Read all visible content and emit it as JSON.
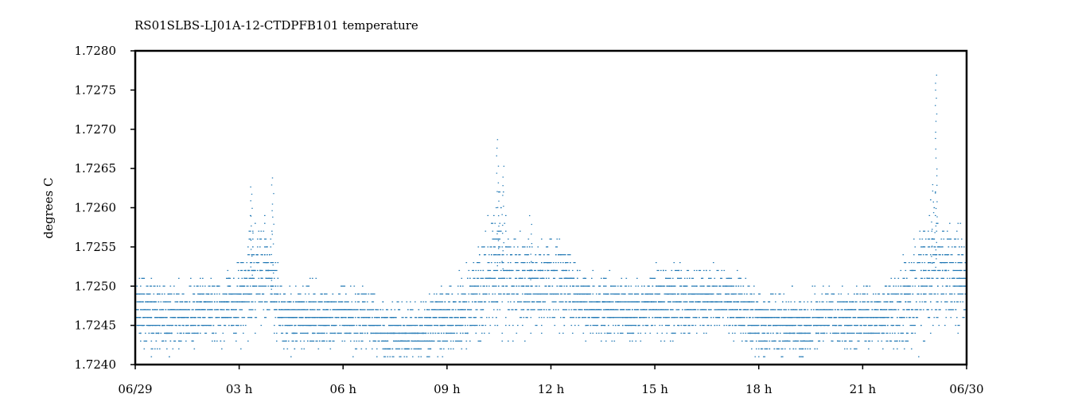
{
  "chart_data": {
    "type": "scatter",
    "title": "RS01SLBS-LJ01A-12-CTDPFB101 temperature",
    "xlabel": "",
    "ylabel": "degrees C",
    "xlim": [
      0,
      24
    ],
    "ylim": [
      1.724,
      1.728
    ],
    "grid": false,
    "legend": "none",
    "x_unit": "hours since 06/29 00:00",
    "x_ticks": [
      {
        "value": 0,
        "label": "06/29"
      },
      {
        "value": 3,
        "label": "03 h"
      },
      {
        "value": 6,
        "label": "06 h"
      },
      {
        "value": 9,
        "label": "09 h"
      },
      {
        "value": 12,
        "label": "12 h"
      },
      {
        "value": 15,
        "label": "15 h"
      },
      {
        "value": 18,
        "label": "18 h"
      },
      {
        "value": 21,
        "label": "21 h"
      },
      {
        "value": 24,
        "label": "06/30"
      }
    ],
    "y_ticks": [
      {
        "value": 1.724,
        "label": "1.7240"
      },
      {
        "value": 1.7245,
        "label": "1.7245"
      },
      {
        "value": 1.725,
        "label": "1.7250"
      },
      {
        "value": 1.7255,
        "label": "1.7255"
      },
      {
        "value": 1.726,
        "label": "1.7260"
      },
      {
        "value": 1.7265,
        "label": "1.7265"
      },
      {
        "value": 1.727,
        "label": "1.7270"
      },
      {
        "value": 1.7275,
        "label": "1.7275"
      },
      {
        "value": 1.728,
        "label": "1.7280"
      }
    ],
    "color": "#1f77b4",
    "series": [
      {
        "x": [
          0.0,
          0.5,
          1.0,
          1.5,
          2.0,
          2.5,
          3.0,
          3.25,
          3.5,
          3.75,
          4.0,
          4.25,
          4.5,
          5.0,
          5.5,
          6.0,
          6.5,
          7.0,
          7.5,
          8.0,
          8.5,
          9.0,
          9.5,
          10.0,
          10.25,
          10.5,
          10.75,
          11.0,
          11.5,
          12.0,
          12.5,
          13.0,
          13.5,
          14.0,
          14.5,
          15.0,
          15.5,
          16.0,
          16.5,
          17.0,
          17.5,
          18.0,
          18.5,
          19.0,
          19.5,
          20.0,
          20.5,
          21.0,
          21.5,
          22.0,
          22.5,
          22.75,
          23.0,
          23.25,
          23.5,
          24.0
        ],
        "y": [
          1.7247,
          1.7246,
          1.7246,
          1.7246,
          1.7247,
          1.7247,
          1.7248,
          1.7251,
          1.7252,
          1.7252,
          1.7249,
          1.7246,
          1.7246,
          1.7246,
          1.7246,
          1.7246,
          1.7246,
          1.7245,
          1.7244,
          1.7244,
          1.7245,
          1.7246,
          1.7247,
          1.7249,
          1.7251,
          1.7253,
          1.7251,
          1.725,
          1.725,
          1.7251,
          1.725,
          1.7248,
          1.7247,
          1.7247,
          1.7247,
          1.7248,
          1.7248,
          1.7248,
          1.7248,
          1.7248,
          1.7247,
          1.7245,
          1.7245,
          1.7245,
          1.7245,
          1.7246,
          1.7246,
          1.7246,
          1.7246,
          1.7247,
          1.7249,
          1.7251,
          1.7252,
          1.7253,
          1.7252,
          1.7251
        ],
        "spread": [
          0.0003,
          0.0003,
          0.0003,
          0.0003,
          0.0003,
          0.0003,
          0.0004,
          0.0005,
          0.0005,
          0.0005,
          0.0004,
          0.0003,
          0.0003,
          0.0003,
          0.0003,
          0.0003,
          0.0003,
          0.0003,
          0.0003,
          0.0003,
          0.0003,
          0.0003,
          0.0004,
          0.0005,
          0.0006,
          0.0007,
          0.0005,
          0.0005,
          0.0004,
          0.0005,
          0.0004,
          0.0003,
          0.0003,
          0.0003,
          0.0003,
          0.0003,
          0.0004,
          0.0003,
          0.0003,
          0.0003,
          0.0003,
          0.0003,
          0.0003,
          0.0003,
          0.0003,
          0.0003,
          0.0003,
          0.0003,
          0.0003,
          0.0004,
          0.0005,
          0.0006,
          0.0007,
          0.0006,
          0.0005,
          0.0004
        ]
      }
    ],
    "spikes": [
      {
        "x": 3.35,
        "ymax": 1.7263
      },
      {
        "x": 3.95,
        "ymax": 1.7264
      },
      {
        "x": 10.45,
        "ymax": 1.7269
      },
      {
        "x": 10.6,
        "ymax": 1.7266
      },
      {
        "x": 11.4,
        "ymax": 1.7259
      },
      {
        "x": 23.1,
        "ymax": 1.7278
      },
      {
        "x": 23.0,
        "ymax": 1.7263
      }
    ]
  }
}
